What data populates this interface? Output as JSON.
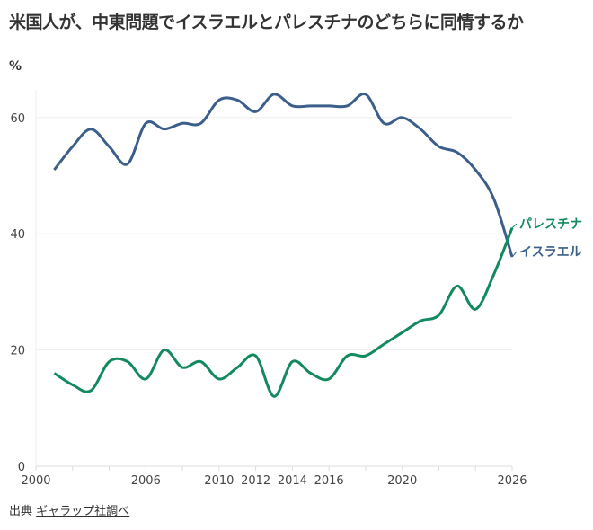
{
  "title": "米国人が、中東問題でイスラエルとパレスチナのどちらに同情するか",
  "source": {
    "prefix": "出典",
    "link": "ギャラップ社調べ"
  },
  "chart_data": {
    "type": "line",
    "title": "米国人が、中東問題でイスラエルとパレスチナのどちらに同情するか",
    "ylabel": "%",
    "xlim": [
      2000,
      2026
    ],
    "ylim": [
      0,
      65
    ],
    "x_ticks": [
      2000,
      2006,
      2010,
      2012,
      2014,
      2016,
      2020,
      2026
    ],
    "y_ticks": [
      0,
      20,
      40,
      60
    ],
    "grid": true,
    "x": [
      2001,
      2002,
      2003,
      2004,
      2005,
      2006,
      2007,
      2008,
      2009,
      2010,
      2011,
      2012,
      2013,
      2014,
      2015,
      2016,
      2017,
      2018,
      2019,
      2020,
      2021,
      2022,
      2023,
      2024,
      2025,
      2026
    ],
    "series": [
      {
        "name": "イスラエル",
        "color": "#3b5f8a",
        "values": [
          51,
          55,
          58,
          55,
          52,
          59,
          58,
          59,
          59,
          63,
          63,
          61,
          64,
          62,
          62,
          62,
          62,
          64,
          59,
          60,
          58,
          55,
          54,
          51,
          46,
          36
        ]
      },
      {
        "name": "パレスチナ",
        "color": "#138a5e",
        "values": [
          16,
          14,
          13,
          18,
          18,
          15,
          20,
          17,
          18,
          15,
          17,
          19,
          12,
          18,
          16,
          15,
          19,
          19,
          21,
          23,
          25,
          26,
          31,
          27,
          33,
          41
        ]
      }
    ]
  }
}
